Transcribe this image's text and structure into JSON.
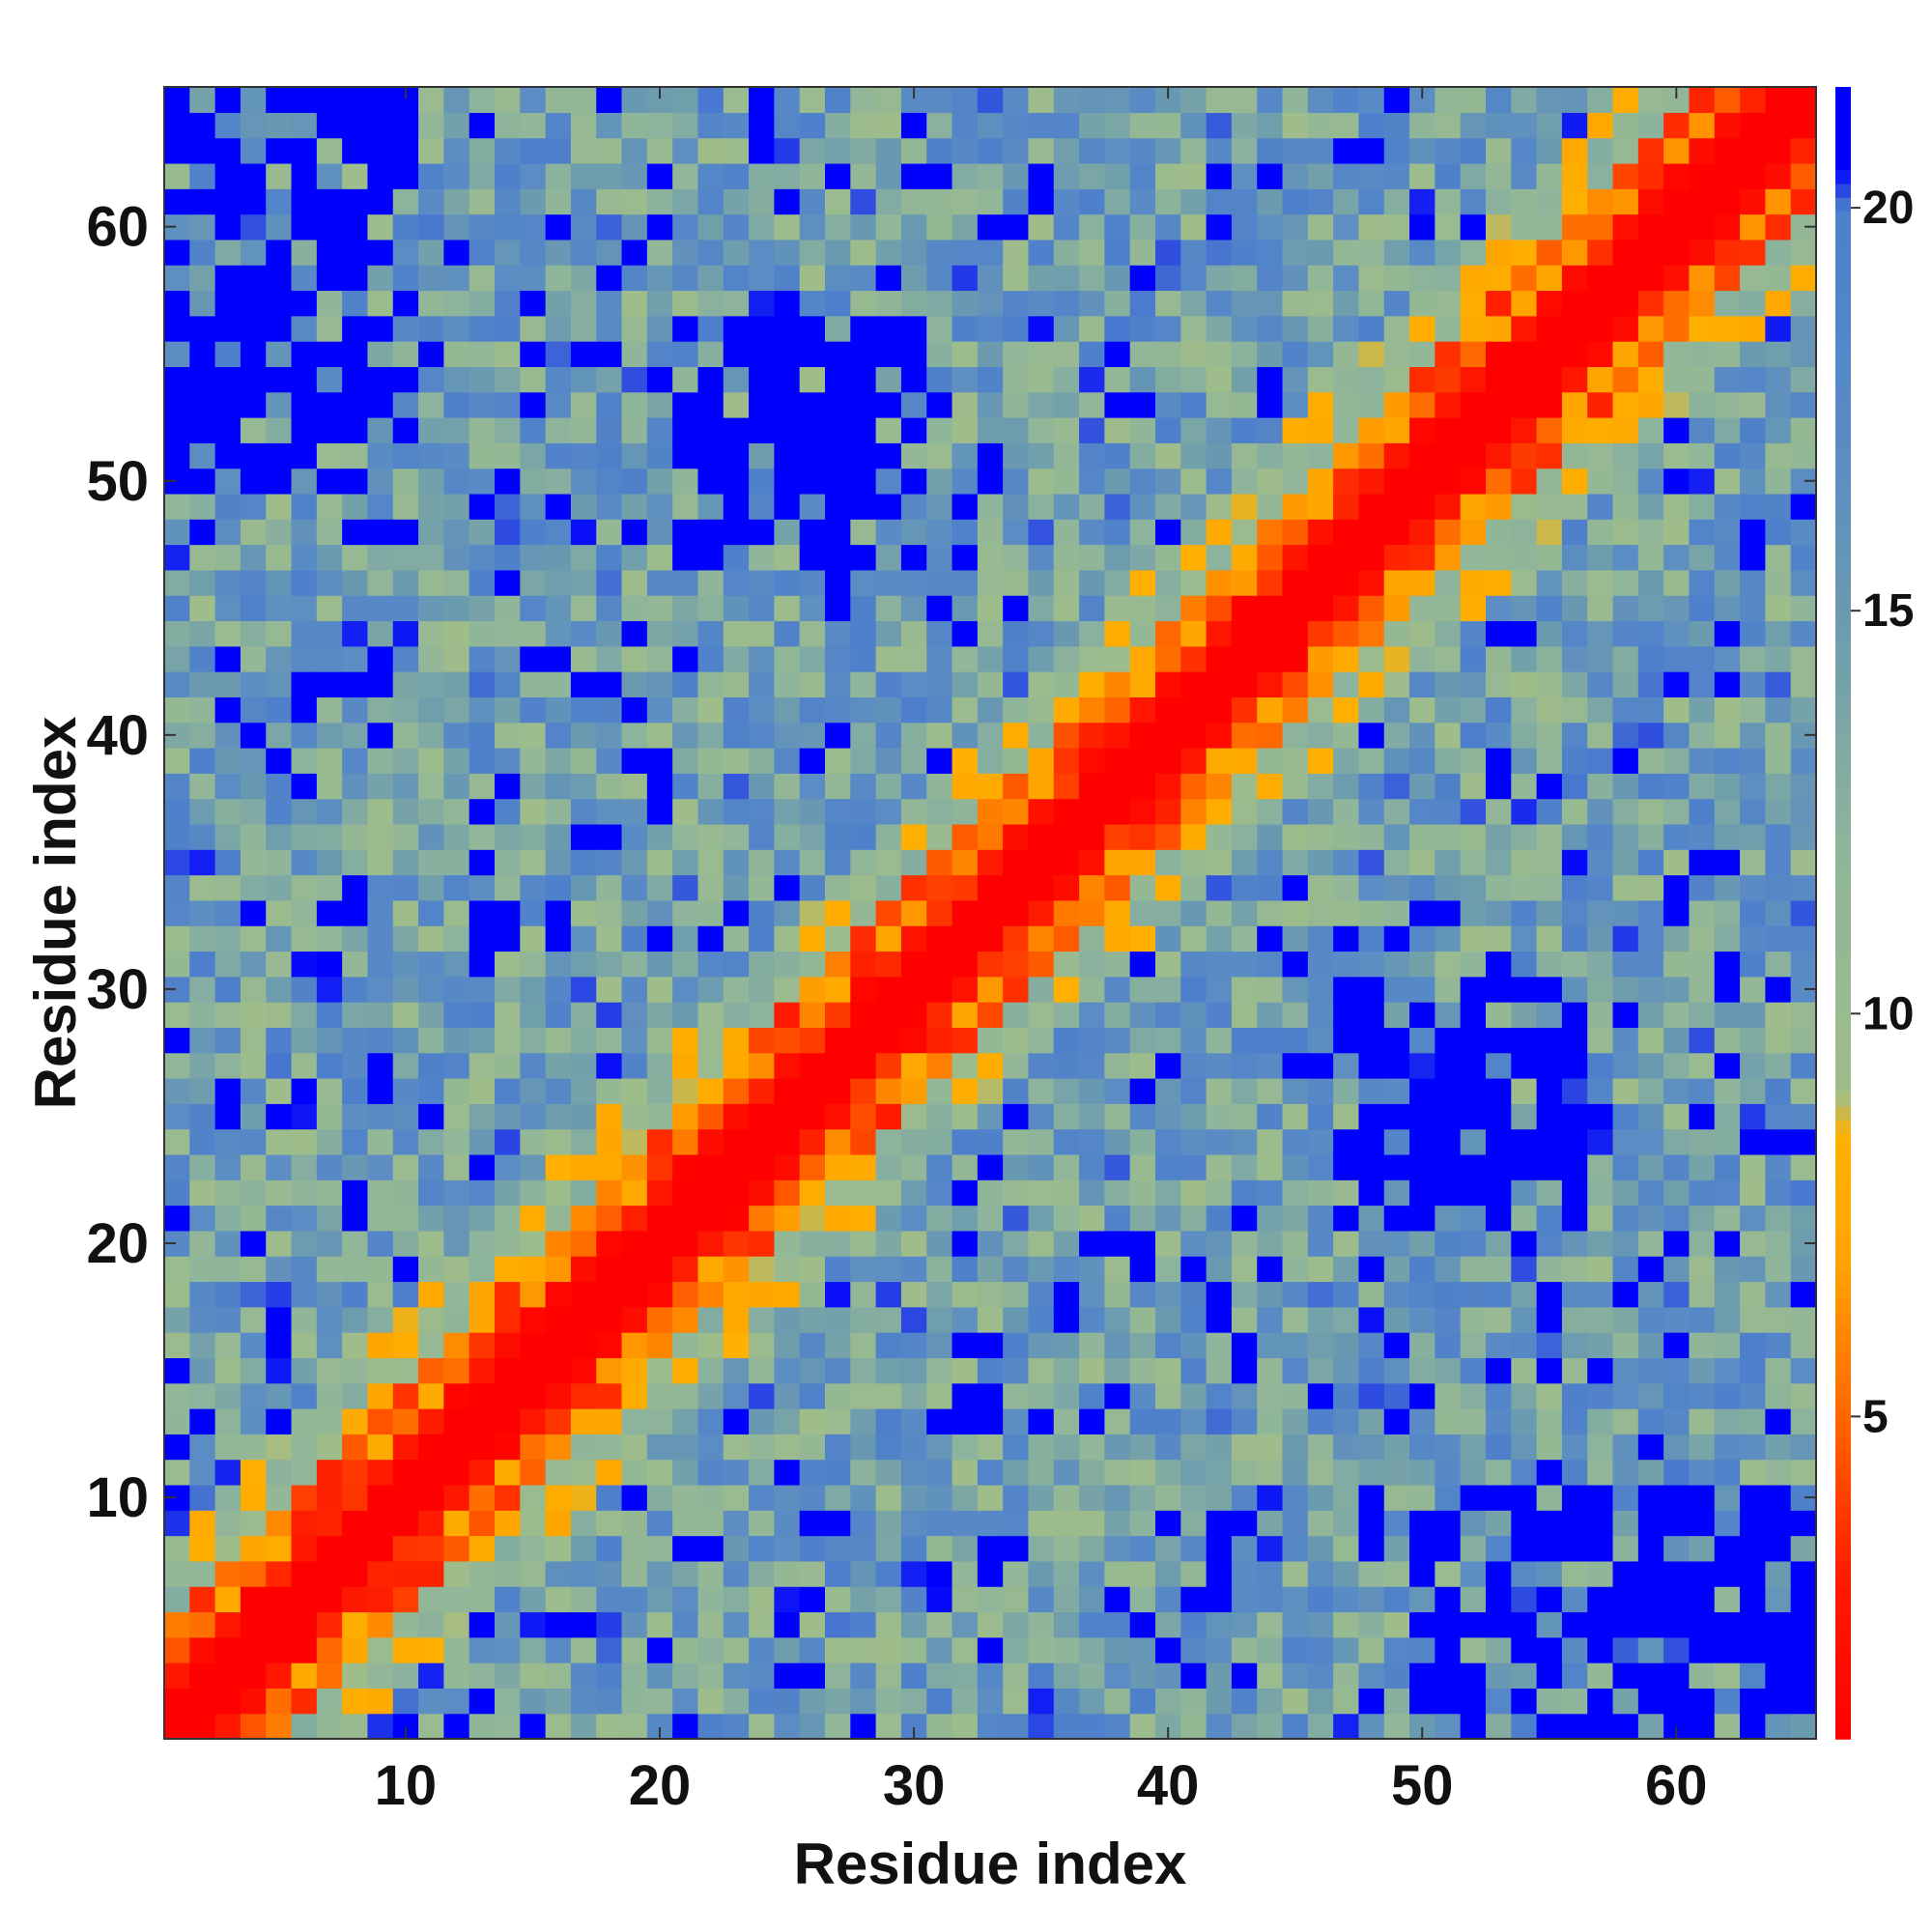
{
  "chart_data": {
    "type": "heatmap",
    "title": "",
    "xlabel": "Residue index",
    "ylabel": "Residue index",
    "n_residues": 65,
    "x_range": [
      1,
      65
    ],
    "y_range": [
      1,
      65
    ],
    "xticks": [
      10,
      20,
      30,
      40,
      50,
      60
    ],
    "yticks": [
      10,
      20,
      30,
      40,
      50,
      60
    ],
    "colorbar": {
      "range": [
        1,
        21.5
      ],
      "ticks": [
        5,
        10,
        15,
        20
      ],
      "stops": [
        {
          "value": 1,
          "color": "#ff0000"
        },
        {
          "value": 3,
          "color": "#ff1a00"
        },
        {
          "value": 5,
          "color": "#ff6600"
        },
        {
          "value": 7,
          "color": "#ffa500"
        },
        {
          "value": 8.5,
          "color": "#ffb000"
        },
        {
          "value": 9,
          "color": "#9fbd8a"
        },
        {
          "value": 12,
          "color": "#8fb59a"
        },
        {
          "value": 15,
          "color": "#6a9ab0"
        },
        {
          "value": 17,
          "color": "#5b8cc4"
        },
        {
          "value": 20,
          "color": "#4d7fcc"
        },
        {
          "value": 20.5,
          "color": "#0000ff"
        },
        {
          "value": 21.5,
          "color": "#0000ff"
        }
      ]
    },
    "legend": "colorbar-right",
    "grid": false,
    "distance_model": {
      "description_values": "symmetric residue-residue distance matrix in colorbar units",
      "diagonal_value": 1,
      "far_blocks": [
        {
          "i": [
            1,
            10
          ],
          "j": [
            50,
            65
          ],
          "value": 21
        },
        {
          "i": [
            50,
            65
          ],
          "j": [
            1,
            10
          ],
          "value": 21
        },
        {
          "i": [
            21,
            30
          ],
          "j": [
            47,
            56
          ],
          "value": 21
        },
        {
          "i": [
            47,
            56
          ],
          "j": [
            21,
            30
          ],
          "value": 21
        },
        {
          "i": [
            22,
            28
          ],
          "j": [
            48,
            56
          ],
          "value": 21
        },
        {
          "i": [
            48,
            56
          ],
          "j": [
            22,
            28
          ],
          "value": 21
        }
      ],
      "seed": 7
    }
  }
}
